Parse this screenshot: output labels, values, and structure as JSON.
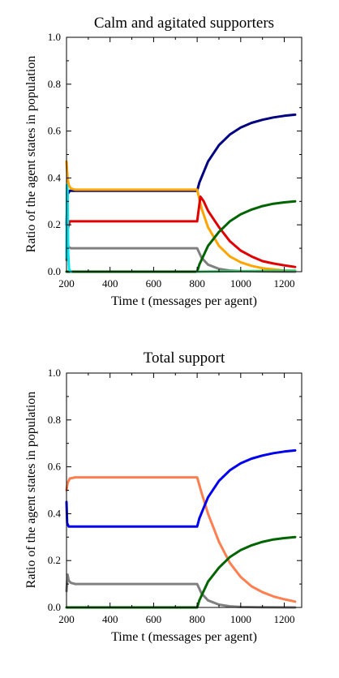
{
  "chart_data": [
    {
      "type": "line",
      "title": "Calm and agitated supporters",
      "xlabel": "Time t (messages per agent)",
      "ylabel": "Ratio of the agent states in population",
      "xlim": [
        200,
        1280
      ],
      "ylim": [
        0.0,
        1.0
      ],
      "xticks": [
        200,
        400,
        600,
        800,
        1000,
        1200
      ],
      "yticks": [
        0.0,
        0.2,
        0.4,
        0.6,
        0.8,
        1.0
      ],
      "xtick_labels": [
        "200",
        "400",
        "600",
        "800",
        "1000",
        "1200"
      ],
      "ytick_labels": [
        "0.0",
        "0.2",
        "0.4",
        "0.6",
        "0.8",
        "1.0"
      ],
      "grid": false,
      "series": [
        {
          "color": "#000080",
          "x": [
            200,
            205,
            215,
            300,
            400,
            500,
            600,
            700,
            800,
            810,
            850,
            900,
            950,
            1000,
            1050,
            1100,
            1150,
            1200,
            1250
          ],
          "y": [
            0.2,
            0.33,
            0.345,
            0.345,
            0.345,
            0.345,
            0.345,
            0.345,
            0.345,
            0.38,
            0.47,
            0.54,
            0.585,
            0.615,
            0.635,
            0.648,
            0.658,
            0.665,
            0.67
          ]
        },
        {
          "color": "#FFA500",
          "x": [
            200,
            205,
            210,
            220,
            240,
            300,
            400,
            500,
            600,
            700,
            800,
            820,
            850,
            900,
            950,
            1000,
            1050,
            1100,
            1150,
            1200,
            1250
          ],
          "y": [
            0.47,
            0.4,
            0.37,
            0.355,
            0.35,
            0.35,
            0.35,
            0.35,
            0.35,
            0.35,
            0.35,
            0.27,
            0.19,
            0.11,
            0.065,
            0.04,
            0.025,
            0.015,
            0.01,
            0.005,
            0.003
          ]
        },
        {
          "color": "#E00000",
          "x": [
            200,
            205,
            215,
            300,
            400,
            500,
            600,
            700,
            800,
            815,
            830,
            850,
            900,
            950,
            1000,
            1050,
            1100,
            1150,
            1200,
            1250
          ],
          "y": [
            0.08,
            0.18,
            0.215,
            0.215,
            0.215,
            0.215,
            0.215,
            0.215,
            0.215,
            0.32,
            0.3,
            0.26,
            0.19,
            0.13,
            0.09,
            0.065,
            0.045,
            0.035,
            0.027,
            0.02
          ]
        },
        {
          "color": "#808080",
          "x": [
            200,
            205,
            210,
            220,
            240,
            300,
            400,
            500,
            600,
            700,
            800,
            820,
            850,
            900,
            950,
            1000,
            1100,
            1250
          ],
          "y": [
            0.05,
            0.12,
            0.105,
            0.1,
            0.1,
            0.1,
            0.1,
            0.1,
            0.1,
            0.1,
            0.1,
            0.06,
            0.03,
            0.012,
            0.005,
            0.002,
            0.001,
            0.0
          ]
        },
        {
          "color": "#006400",
          "x": [
            200,
            800,
            810,
            850,
            900,
            950,
            1000,
            1050,
            1100,
            1150,
            1200,
            1250
          ],
          "y": [
            0.0,
            0.0,
            0.03,
            0.11,
            0.17,
            0.215,
            0.245,
            0.265,
            0.28,
            0.29,
            0.296,
            0.3
          ]
        },
        {
          "color": "#00E5EE",
          "x": [
            200,
            202,
            205,
            208,
            212,
            220
          ],
          "y": [
            0.06,
            0.37,
            0.35,
            0.08,
            0.01,
            0.0
          ]
        },
        {
          "color": "#40C870",
          "x": [
            800,
            900,
            1000,
            1250
          ],
          "y": [
            0.0,
            0.001,
            0.002,
            0.004
          ]
        }
      ]
    },
    {
      "type": "line",
      "title": "Total support",
      "xlabel": "Time t (messages per agent)",
      "ylabel": "Ratio of the agent states in population",
      "xlim": [
        200,
        1280
      ],
      "ylim": [
        0.0,
        1.0
      ],
      "xticks": [
        200,
        400,
        600,
        800,
        1000,
        1200
      ],
      "yticks": [
        0.0,
        0.2,
        0.4,
        0.6,
        0.8,
        1.0
      ],
      "xtick_labels": [
        "200",
        "400",
        "600",
        "800",
        "1000",
        "1200"
      ],
      "ytick_labels": [
        "0.0",
        "0.2",
        "0.4",
        "0.6",
        "0.8",
        "1.0"
      ],
      "grid": false,
      "series": [
        {
          "color": "#FF7F50",
          "x": [
            200,
            205,
            215,
            240,
            300,
            400,
            500,
            600,
            700,
            800,
            820,
            850,
            900,
            950,
            1000,
            1050,
            1100,
            1150,
            1200,
            1250
          ],
          "y": [
            0.5,
            0.53,
            0.55,
            0.555,
            0.555,
            0.555,
            0.555,
            0.555,
            0.555,
            0.555,
            0.49,
            0.4,
            0.28,
            0.19,
            0.13,
            0.09,
            0.065,
            0.047,
            0.035,
            0.025
          ]
        },
        {
          "color": "#0000EE",
          "x": [
            200,
            203,
            210,
            300,
            400,
            500,
            600,
            700,
            800,
            810,
            850,
            900,
            950,
            1000,
            1050,
            1100,
            1150,
            1200,
            1250
          ],
          "y": [
            0.45,
            0.36,
            0.345,
            0.345,
            0.345,
            0.345,
            0.345,
            0.345,
            0.345,
            0.38,
            0.47,
            0.54,
            0.585,
            0.615,
            0.635,
            0.648,
            0.658,
            0.665,
            0.67
          ]
        },
        {
          "color": "#808080",
          "x": [
            200,
            205,
            210,
            220,
            240,
            300,
            400,
            500,
            600,
            700,
            800,
            820,
            850,
            900,
            950,
            1000,
            1100,
            1250
          ],
          "y": [
            0.07,
            0.14,
            0.115,
            0.105,
            0.1,
            0.1,
            0.1,
            0.1,
            0.1,
            0.1,
            0.1,
            0.06,
            0.03,
            0.012,
            0.005,
            0.002,
            0.001,
            0.0
          ]
        },
        {
          "color": "#006400",
          "x": [
            200,
            800,
            810,
            850,
            900,
            950,
            1000,
            1050,
            1100,
            1150,
            1200,
            1250
          ],
          "y": [
            0.0,
            0.0,
            0.03,
            0.11,
            0.17,
            0.215,
            0.245,
            0.265,
            0.28,
            0.29,
            0.296,
            0.3
          ]
        }
      ]
    }
  ]
}
